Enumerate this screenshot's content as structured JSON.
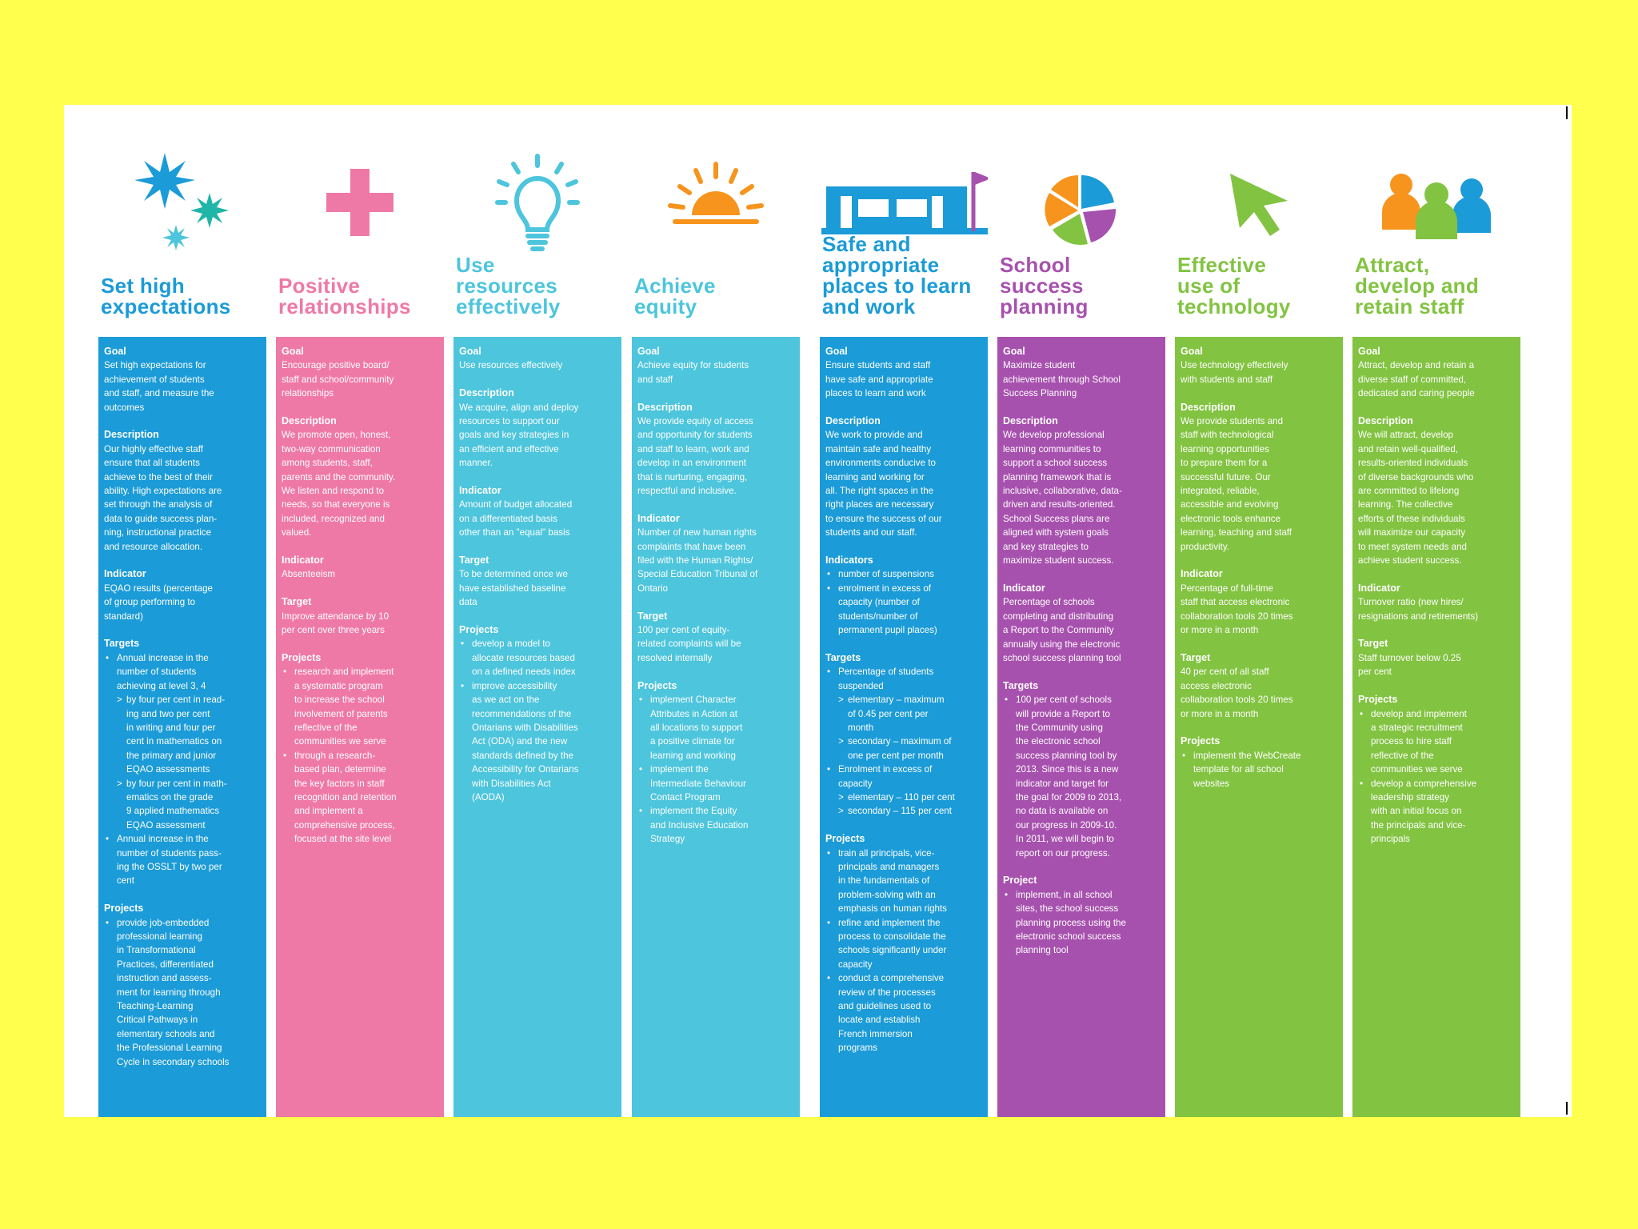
{
  "colors": {
    "background": "#ffff4d",
    "sheet": "#ffffff",
    "blue": "#1b9bd7",
    "pink": "#ef79a6",
    "aqua": "#4dc5dc",
    "purple": "#a751ae",
    "green": "#82c341",
    "orange": "#f7941d"
  },
  "columns": [
    {
      "color": "#1b9bd7",
      "icon": "stars-icon",
      "title": [
        "Set high",
        "expectations"
      ],
      "sections": [
        {
          "title": "Goal",
          "lines": [
            "Set high expectations for",
            "achievement of students",
            "and staff, and measure the",
            "outcomes"
          ]
        },
        {
          "title": "Description",
          "lines": [
            "Our highly effective staff",
            "ensure that all students",
            "achieve to the best of their",
            "ability. High expectations are",
            "set through the analysis of",
            "data to guide success plan-",
            "ning, instructional practice",
            "and resource allocation."
          ]
        },
        {
          "title": "Indicator",
          "lines": [
            "EQAO results (percentage",
            "of group performing to",
            "standard)"
          ]
        },
        {
          "title": "Targets",
          "bullets": [
            {
              "lines": [
                "Annual increase in the",
                "number of students",
                "achieving at level 3, 4"
              ],
              "sub": [
                {
                  "lines": [
                    "by four per cent in read-",
                    "ing and two per cent",
                    "in writing and four per",
                    "cent in mathematics on",
                    "the primary and junior",
                    "EQAO assessments"
                  ]
                },
                {
                  "lines": [
                    "by four per cent in math-",
                    "ematics on the grade",
                    "9 applied mathematics",
                    "EQAO assessment"
                  ]
                }
              ]
            },
            {
              "lines": [
                "Annual increase in the",
                "number of students pass-",
                "ing the OSSLT by two per",
                "cent"
              ]
            }
          ]
        },
        {
          "title": "Projects",
          "bullets": [
            {
              "lines": [
                "provide job-embedded",
                "professional learning",
                "in Transformational",
                "Practices, differentiated",
                "instruction and assess-",
                "ment for learning through",
                "Teaching-Learning",
                "Critical Pathways in",
                "elementary schools and",
                "the Professional Learning",
                "Cycle in secondary schools"
              ]
            }
          ]
        }
      ]
    },
    {
      "color": "#ef79a6",
      "icon": "plus-icon",
      "title": [
        "Positive",
        "relationships"
      ],
      "sections": [
        {
          "title": "Goal",
          "lines": [
            "Encourage positive board/",
            "staff and school/community",
            "relationships"
          ]
        },
        {
          "title": "Description",
          "lines": [
            "We promote open, honest,",
            "two-way communication",
            "among students, staff,",
            "parents and the community.",
            "We listen and respond to",
            "needs, so that everyone is",
            "included, recognized and",
            "valued."
          ]
        },
        {
          "title": "Indicator",
          "lines": [
            "Absenteeism"
          ]
        },
        {
          "title": "Target",
          "lines": [
            "Improve attendance by 10",
            "per cent over three years"
          ]
        },
        {
          "title": "Projects",
          "bullets": [
            {
              "lines": [
                "research and implement",
                "a systematic program",
                "to increase the school",
                "involvement of parents",
                "reflective of the",
                "communities we serve"
              ]
            },
            {
              "lines": [
                "through a research-",
                "based plan, determine",
                "the key factors in staff",
                "recognition and retention",
                "and implement a",
                "comprehensive process,",
                "focused at the site level"
              ]
            }
          ]
        }
      ]
    },
    {
      "color": "#4dc5dc",
      "icon": "lightbulb-icon",
      "title": [
        "Use",
        "resources",
        "effectively"
      ],
      "sections": [
        {
          "title": "Goal",
          "lines": [
            "Use resources effectively"
          ]
        },
        {
          "title": "Description",
          "lines": [
            "We acquire, align and deploy",
            "resources to support our",
            "goals and key strategies in",
            "an efficient and effective",
            "manner."
          ]
        },
        {
          "title": "Indicator",
          "lines": [
            "Amount of budget allocated",
            "on a differentiated basis",
            "other than an \"equal\" basis"
          ]
        },
        {
          "title": "Target",
          "lines": [
            "To be determined once we",
            "have established baseline",
            "data"
          ]
        },
        {
          "title": "Projects",
          "bullets": [
            {
              "lines": [
                "develop a model to",
                "allocate resources based",
                "on a defined needs index"
              ]
            },
            {
              "lines": [
                "improve accessibility",
                "as we act on the",
                "recommendations of the",
                "Ontarians with Disabilities",
                "Act (ODA) and the new",
                "standards defined by the",
                "Accessibility for Ontarians",
                "with Disabilities Act",
                "(AODA)"
              ]
            }
          ]
        }
      ]
    },
    {
      "color": "#4dc5dc",
      "icon": "sun-icon",
      "title": [
        "Achieve",
        "equity"
      ],
      "sections": [
        {
          "title": "Goal",
          "lines": [
            "Achieve equity for students",
            "and staff"
          ]
        },
        {
          "title": "Description",
          "lines": [
            "We provide equity of access",
            "and opportunity for students",
            "and staff to learn, work and",
            "develop in an environment",
            "that is nurturing, engaging,",
            "respectful and inclusive."
          ]
        },
        {
          "title": "Indicator",
          "lines": [
            "Number of new human rights",
            "complaints that have been",
            "filed with the Human Rights/",
            "Special Education Tribunal of",
            "Ontario"
          ]
        },
        {
          "title": "Target",
          "lines": [
            "100 per cent of equity-",
            "related complaints will be",
            "resolved internally"
          ]
        },
        {
          "title": "Projects",
          "bullets": [
            {
              "lines": [
                "implement Character",
                "Attributes in Action at",
                "all locations to support",
                "a positive climate for",
                "learning and working"
              ]
            },
            {
              "lines": [
                "implement the",
                "Intermediate Behaviour",
                "Contact Program"
              ]
            },
            {
              "lines": [
                "implement the Equity",
                "and Inclusive Education",
                "Strategy"
              ]
            }
          ]
        }
      ]
    },
    {
      "color": "#1b9bd7",
      "icon": "school-building-icon",
      "title": [
        "Safe and",
        "appropriate",
        "places to learn",
        "and work"
      ],
      "sections": [
        {
          "title": "Goal",
          "lines": [
            "Ensure students and staff",
            "have safe and appropriate",
            "places to learn and work"
          ]
        },
        {
          "title": "Description",
          "lines": [
            "We work to provide and",
            "maintain safe and healthy",
            "environments conducive to",
            "learning and working for",
            "all. The right spaces in the",
            "right places are necessary",
            "to ensure the success of our",
            "students and our staff."
          ]
        },
        {
          "title": "Indicators",
          "bullets": [
            {
              "lines": [
                "number of suspensions"
              ]
            },
            {
              "lines": [
                "enrolment in excess of",
                "capacity (number of",
                "students/number of",
                "permanent pupil places)"
              ]
            }
          ]
        },
        {
          "title": "Targets",
          "bullets": [
            {
              "lines": [
                "Percentage of students",
                "suspended"
              ],
              "sub": [
                {
                  "lines": [
                    "elementary – maximum",
                    "of 0.45 per cent per",
                    "month"
                  ]
                },
                {
                  "lines": [
                    "secondary – maximum of",
                    "one per cent per month"
                  ]
                }
              ]
            },
            {
              "lines": [
                "Enrolment in excess of",
                "capacity"
              ],
              "sub": [
                {
                  "lines": [
                    "elementary – 110 per cent"
                  ]
                },
                {
                  "lines": [
                    "secondary – 115 per cent"
                  ]
                }
              ]
            }
          ]
        },
        {
          "title": "Projects",
          "bullets": [
            {
              "lines": [
                "train all principals, vice-",
                "principals and managers",
                "in the fundamentals of",
                "problem-solving with an",
                "emphasis on human rights"
              ]
            },
            {
              "lines": [
                "refine and implement the",
                "process to consolidate the",
                "schools significantly under",
                "capacity"
              ]
            },
            {
              "lines": [
                "conduct a comprehensive",
                "review of the processes",
                "and guidelines used to",
                "locate and establish",
                "French immersion",
                "programs"
              ]
            }
          ]
        }
      ]
    },
    {
      "color": "#a751ae",
      "icon": "pie-chart-icon",
      "title": [
        "School",
        "success",
        "planning"
      ],
      "sections": [
        {
          "title": "Goal",
          "lines": [
            "Maximize student",
            "achievement through School",
            "Success Planning"
          ]
        },
        {
          "title": "Description",
          "lines": [
            "We develop professional",
            "learning communities to",
            "support a school success",
            "planning framework that is",
            "inclusive, collaborative, data-",
            "driven and results-oriented.",
            "School Success plans are",
            "aligned with system goals",
            "and key strategies to",
            "maximize student success."
          ]
        },
        {
          "title": "Indicator",
          "lines": [
            "Percentage of schools",
            "completing and distributing",
            "a Report to the Community",
            "annually using the electronic",
            "school success planning tool"
          ]
        },
        {
          "title": "Targets",
          "bullets": [
            {
              "lines": [
                "100 per cent of schools",
                "will provide a Report to",
                "the Community using",
                "the electronic school",
                "success planning tool by",
                "2013. Since this is a new",
                "indicator and target for",
                "the goal for 2009 to 2013,",
                "no data is available on",
                "our progress in 2009-10.",
                "In 2011, we will begin to",
                "report on our progress."
              ]
            }
          ]
        },
        {
          "title": "Project",
          "bullets": [
            {
              "lines": [
                "implement, in all school",
                "sites, the school success",
                "planning process using the",
                "electronic school success",
                "planning tool"
              ]
            }
          ]
        }
      ]
    },
    {
      "color": "#82c341",
      "icon": "cursor-arrow-icon",
      "title": [
        "Effective",
        "use of",
        "technology"
      ],
      "sections": [
        {
          "title": "Goal",
          "lines": [
            "Use technology effectively",
            "with students and staff"
          ]
        },
        {
          "title": "Description",
          "lines": [
            "We provide students and",
            "staff with technological",
            "learning opportunities",
            "to prepare them for a",
            "successful future. Our",
            "integrated, reliable,",
            "accessible and evolving",
            "electronic tools enhance",
            "learning, teaching and staff",
            "productivity."
          ]
        },
        {
          "title": "Indicator",
          "lines": [
            "Percentage of full-time",
            "staff that access electronic",
            "collaboration tools 20 times",
            "or more in a month"
          ]
        },
        {
          "title": "Target",
          "lines": [
            "40 per cent of all staff",
            "access electronic",
            "collaboration tools 20 times",
            "or more in a month"
          ]
        },
        {
          "title": "Projects",
          "bullets": [
            {
              "lines": [
                "implement the WebCreate",
                "template for all school",
                "websites"
              ]
            }
          ]
        }
      ]
    },
    {
      "color": "#82c341",
      "icon": "people-icon",
      "title": [
        "Attract,",
        "develop and",
        "retain staff"
      ],
      "sections": [
        {
          "title": "Goal",
          "lines": [
            "Attract, develop and retain a",
            "diverse staff of committed,",
            "dedicated and caring people"
          ]
        },
        {
          "title": "Description",
          "lines": [
            "We will attract, develop",
            "and retain well-qualified,",
            "results-oriented individuals",
            "of diverse backgrounds who",
            "are committed to lifelong",
            "learning. The collective",
            "efforts of these individuals",
            "will maximize our capacity",
            "to meet system needs and",
            "achieve student success."
          ]
        },
        {
          "title": "Indicator",
          "lines": [
            "Turnover ratio (new hires/",
            "resignations and retirements)"
          ]
        },
        {
          "title": "Target",
          "lines": [
            "Staff turnover below 0.25",
            "per cent"
          ]
        },
        {
          "title": "Projects",
          "bullets": [
            {
              "lines": [
                "develop and implement",
                "a strategic recruitment",
                "process to hire staff",
                "reflective of the",
                "communities we serve"
              ]
            },
            {
              "lines": [
                "develop a comprehensive",
                "leadership strategy",
                "with an initial focus on",
                "the principals and vice-",
                "principals"
              ]
            }
          ]
        }
      ]
    }
  ]
}
